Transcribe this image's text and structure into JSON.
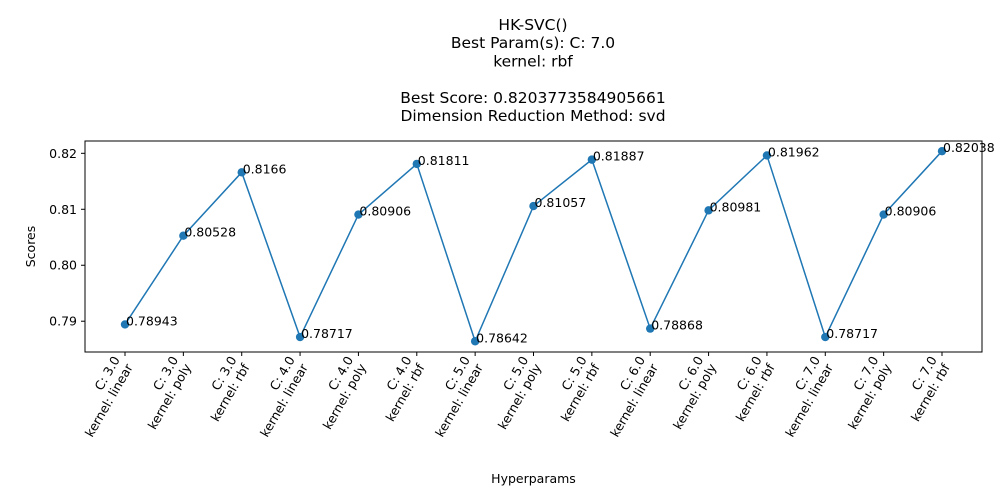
{
  "chart_data": {
    "type": "line",
    "title_lines": [
      "HK-SVC()",
      "Best Param(s): C: 7.0",
      "kernel: rbf",
      "",
      "Best Score: 0.8203773584905661",
      "Dimension Reduction Method: svd"
    ],
    "xlabel": "Hyperparams",
    "ylabel": "Scores",
    "ylim": [
      0.7845,
      0.8222
    ],
    "yticks": [
      "0.79",
      "0.80",
      "0.81",
      "0.82"
    ],
    "ytick_values": [
      0.79,
      0.8,
      0.81,
      0.82
    ],
    "grid": false,
    "legend": "none",
    "categories": [
      [
        "C: 3.0",
        "kernel: linear"
      ],
      [
        "C: 3.0",
        "kernel: poly"
      ],
      [
        "C: 3.0",
        "kernel: rbf"
      ],
      [
        "C: 4.0",
        "kernel: linear"
      ],
      [
        "C: 4.0",
        "kernel: poly"
      ],
      [
        "C: 4.0",
        "kernel: rbf"
      ],
      [
        "C: 5.0",
        "kernel: linear"
      ],
      [
        "C: 5.0",
        "kernel: poly"
      ],
      [
        "C: 5.0",
        "kernel: rbf"
      ],
      [
        "C: 6.0",
        "kernel: linear"
      ],
      [
        "C: 6.0",
        "kernel: poly"
      ],
      [
        "C: 6.0",
        "kernel: rbf"
      ],
      [
        "C: 7.0",
        "kernel: linear"
      ],
      [
        "C: 7.0",
        "kernel: poly"
      ],
      [
        "C: 7.0",
        "kernel: rbf"
      ]
    ],
    "values": [
      0.78943,
      0.80528,
      0.8166,
      0.78717,
      0.80906,
      0.81811,
      0.78642,
      0.81057,
      0.81887,
      0.78868,
      0.80981,
      0.81962,
      0.78717,
      0.80906,
      0.82038
    ],
    "data_labels": [
      "0.78943",
      "0.80528",
      "0.8166",
      "0.78717",
      "0.80906",
      "0.81811",
      "0.78642",
      "0.81057",
      "0.81887",
      "0.78868",
      "0.80981",
      "0.81962",
      "0.78717",
      "0.80906",
      "0.82038"
    ],
    "line_color": "#1f77b4",
    "marker": "circle"
  }
}
